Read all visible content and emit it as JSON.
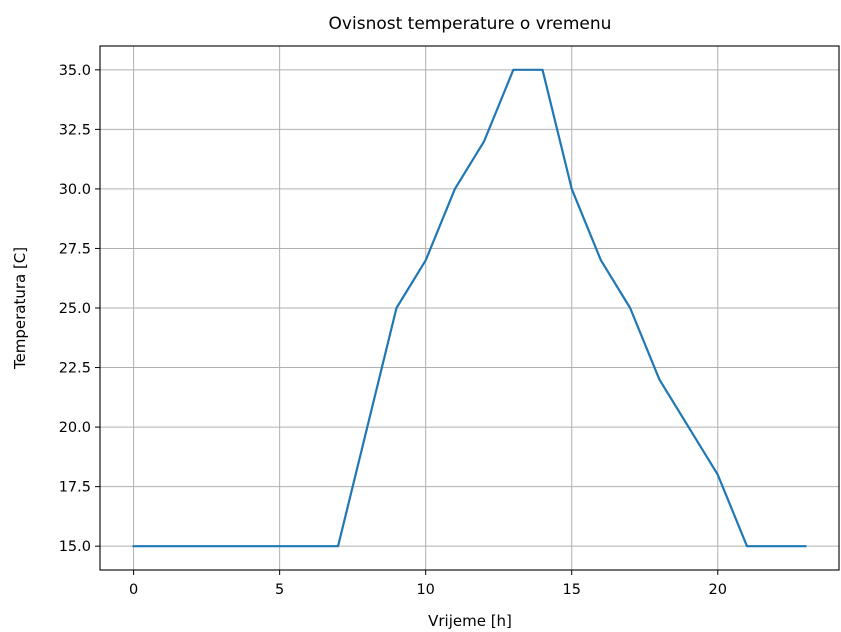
{
  "chart_data": {
    "type": "line",
    "title": "Ovisnost temperature o vremenu",
    "xlabel": "Vrijeme [h]",
    "ylabel": "Temperatura [C]",
    "xlim": [
      -1.15,
      24.15
    ],
    "ylim": [
      14.0,
      36.0
    ],
    "x_ticks": [
      0,
      5,
      10,
      15,
      20
    ],
    "x_tick_labels": [
      "0",
      "5",
      "10",
      "15",
      "20"
    ],
    "y_ticks": [
      15.0,
      17.5,
      20.0,
      22.5,
      25.0,
      27.5,
      30.0,
      32.5,
      35.0
    ],
    "y_tick_labels": [
      "15.0",
      "17.5",
      "20.0",
      "22.5",
      "25.0",
      "27.5",
      "30.0",
      "32.5",
      "35.0"
    ],
    "grid": true,
    "series": [
      {
        "color": "#1f77b4",
        "x": [
          0,
          1,
          2,
          3,
          4,
          5,
          6,
          7,
          8,
          9,
          10,
          11,
          12,
          13,
          14,
          15,
          16,
          17,
          18,
          19,
          20,
          21,
          22,
          23
        ],
        "y": [
          15,
          15,
          15,
          15,
          15,
          15,
          15,
          15,
          20,
          25,
          27,
          30,
          32,
          35,
          35,
          30,
          27,
          25,
          22,
          20,
          18,
          15,
          15,
          15
        ]
      }
    ]
  }
}
